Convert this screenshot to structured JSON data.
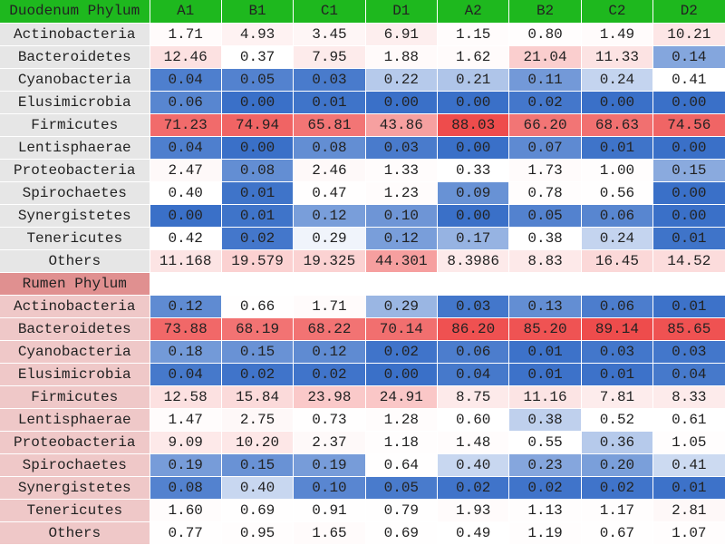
{
  "chart_data": {
    "type": "heatmap",
    "columns": [
      "A1",
      "B1",
      "C1",
      "D1",
      "A2",
      "B2",
      "C2",
      "D2"
    ],
    "color_scale": {
      "low": "#3a70c8",
      "mid": "#ffffff",
      "high": "#ee4c4c"
    },
    "sections": [
      {
        "title": "Duodenum Phylum",
        "header_color": "#1eb81e",
        "label_color": "#e6e6e6",
        "rows": [
          {
            "label": "Actinobacteria",
            "values": [
              "1.71",
              "4.93",
              "3.45",
              "6.91",
              "1.15",
              "0.80",
              "1.49",
              "10.21"
            ]
          },
          {
            "label": "Bacteroidetes",
            "values": [
              "12.46",
              "0.37",
              "7.95",
              "1.88",
              "1.62",
              "21.04",
              "11.33",
              "0.14"
            ]
          },
          {
            "label": "Cyanobacteria",
            "values": [
              "0.04",
              "0.05",
              "0.03",
              "0.22",
              "0.21",
              "0.11",
              "0.24",
              "0.41"
            ]
          },
          {
            "label": "Elusimicrobia",
            "values": [
              "0.06",
              "0.00",
              "0.01",
              "0.00",
              "0.00",
              "0.02",
              "0.00",
              "0.00"
            ]
          },
          {
            "label": "Firmicutes",
            "values": [
              "71.23",
              "74.94",
              "65.81",
              "43.86",
              "88.03",
              "66.20",
              "68.63",
              "74.56"
            ]
          },
          {
            "label": "Lentisphaerae",
            "values": [
              "0.04",
              "0.00",
              "0.08",
              "0.03",
              "0.00",
              "0.07",
              "0.01",
              "0.00"
            ]
          },
          {
            "label": "Proteobacteria",
            "values": [
              "2.47",
              "0.08",
              "2.46",
              "1.33",
              "0.33",
              "1.73",
              "1.00",
              "0.15"
            ]
          },
          {
            "label": "Spirochaetes",
            "values": [
              "0.40",
              "0.01",
              "0.47",
              "1.23",
              "0.09",
              "0.78",
              "0.56",
              "0.00"
            ]
          },
          {
            "label": "Synergistetes",
            "values": [
              "0.00",
              "0.01",
              "0.12",
              "0.10",
              "0.00",
              "0.05",
              "0.06",
              "0.00"
            ]
          },
          {
            "label": "Tenericutes",
            "values": [
              "0.42",
              "0.02",
              "0.29",
              "0.12",
              "0.17",
              "0.38",
              "0.24",
              "0.01"
            ]
          },
          {
            "label": "Others",
            "values": [
              "11.168",
              "19.579",
              "19.325",
              "44.301",
              "8.3986",
              "8.83",
              "16.45",
              "14.52"
            ]
          }
        ]
      },
      {
        "title": "Rumen  Phylum",
        "header_color": "#e09090",
        "label_color": "#efc8c8",
        "rows": [
          {
            "label": "Actinobacteria",
            "values": [
              "0.12",
              "0.66",
              "1.71",
              "0.29",
              "0.03",
              "0.13",
              "0.06",
              "0.01"
            ]
          },
          {
            "label": "Bacteroidetes",
            "values": [
              "73.88",
              "68.19",
              "68.22",
              "70.14",
              "86.20",
              "85.20",
              "89.14",
              "85.65"
            ]
          },
          {
            "label": "Cyanobacteria",
            "values": [
              "0.18",
              "0.15",
              "0.12",
              "0.02",
              "0.06",
              "0.01",
              "0.03",
              "0.03"
            ]
          },
          {
            "label": "Elusimicrobia",
            "values": [
              "0.04",
              "0.02",
              "0.02",
              "0.00",
              "0.04",
              "0.01",
              "0.01",
              "0.04"
            ]
          },
          {
            "label": "Firmicutes",
            "values": [
              "12.58",
              "15.84",
              "23.98",
              "24.91",
              "8.75",
              "11.16",
              "7.81",
              "8.33"
            ]
          },
          {
            "label": "Lentisphaerae",
            "values": [
              "1.47",
              "2.75",
              "0.73",
              "1.28",
              "0.60",
              "0.38",
              "0.52",
              "0.61"
            ]
          },
          {
            "label": "Proteobacteria",
            "values": [
              "9.09",
              "10.20",
              "2.37",
              "1.18",
              "1.48",
              "0.55",
              "0.36",
              "1.05"
            ]
          },
          {
            "label": "Spirochaetes",
            "values": [
              "0.19",
              "0.15",
              "0.19",
              "0.64",
              "0.40",
              "0.23",
              "0.20",
              "0.41"
            ]
          },
          {
            "label": "Synergistetes",
            "values": [
              "0.08",
              "0.40",
              "0.10",
              "0.05",
              "0.02",
              "0.02",
              "0.02",
              "0.01"
            ]
          },
          {
            "label": "Tenericutes",
            "values": [
              "1.60",
              "0.69",
              "0.91",
              "0.79",
              "1.93",
              "1.13",
              "1.17",
              "2.81"
            ]
          },
          {
            "label": "Others",
            "values": [
              "0.77",
              "0.95",
              "1.65",
              "0.69",
              "0.49",
              "1.19",
              "0.67",
              "1.07"
            ]
          }
        ]
      }
    ]
  }
}
